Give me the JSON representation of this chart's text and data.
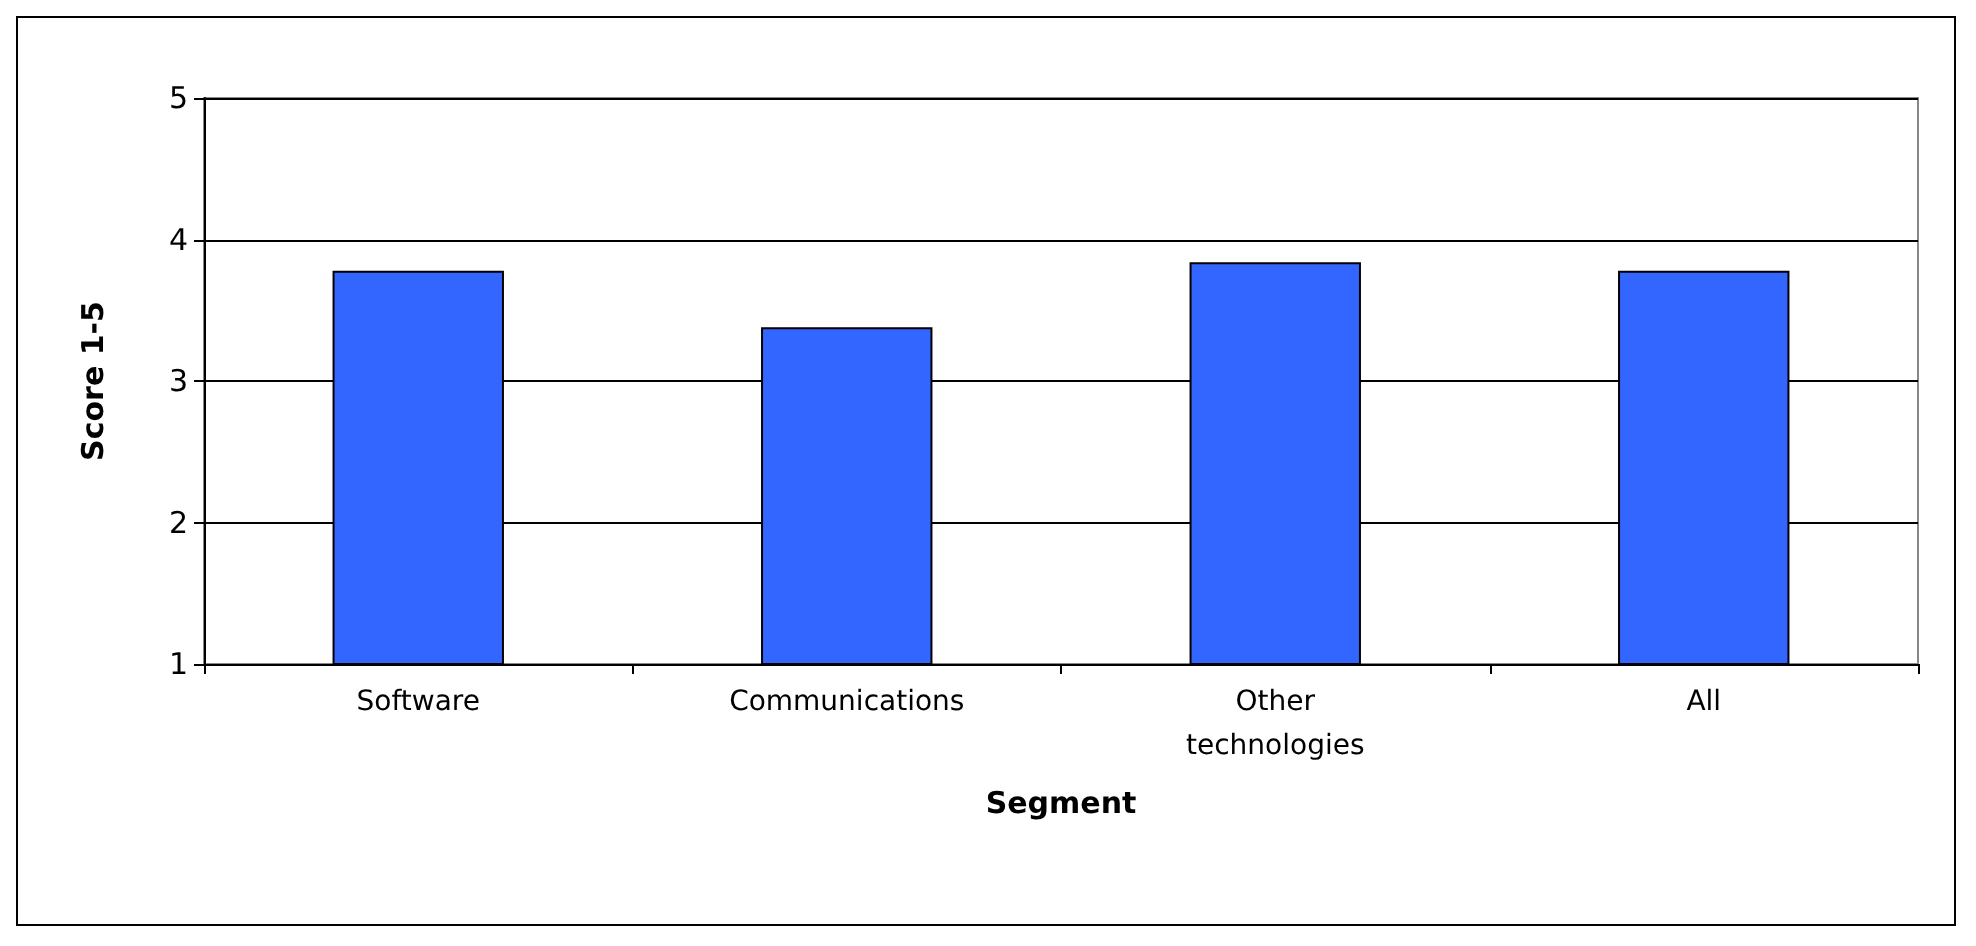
{
  "chart_data": {
    "type": "bar",
    "xlabel": "Segment",
    "ylabel": "Score 1-5",
    "categories": [
      "Software",
      "Communications",
      "Other\ntechnologies",
      "All"
    ],
    "values": [
      3.78,
      3.38,
      3.84,
      3.78
    ],
    "color": "#3366ff",
    "ylim": [
      1,
      5
    ],
    "yticks": [
      1,
      2,
      3,
      4,
      5
    ],
    "grid": "y"
  }
}
